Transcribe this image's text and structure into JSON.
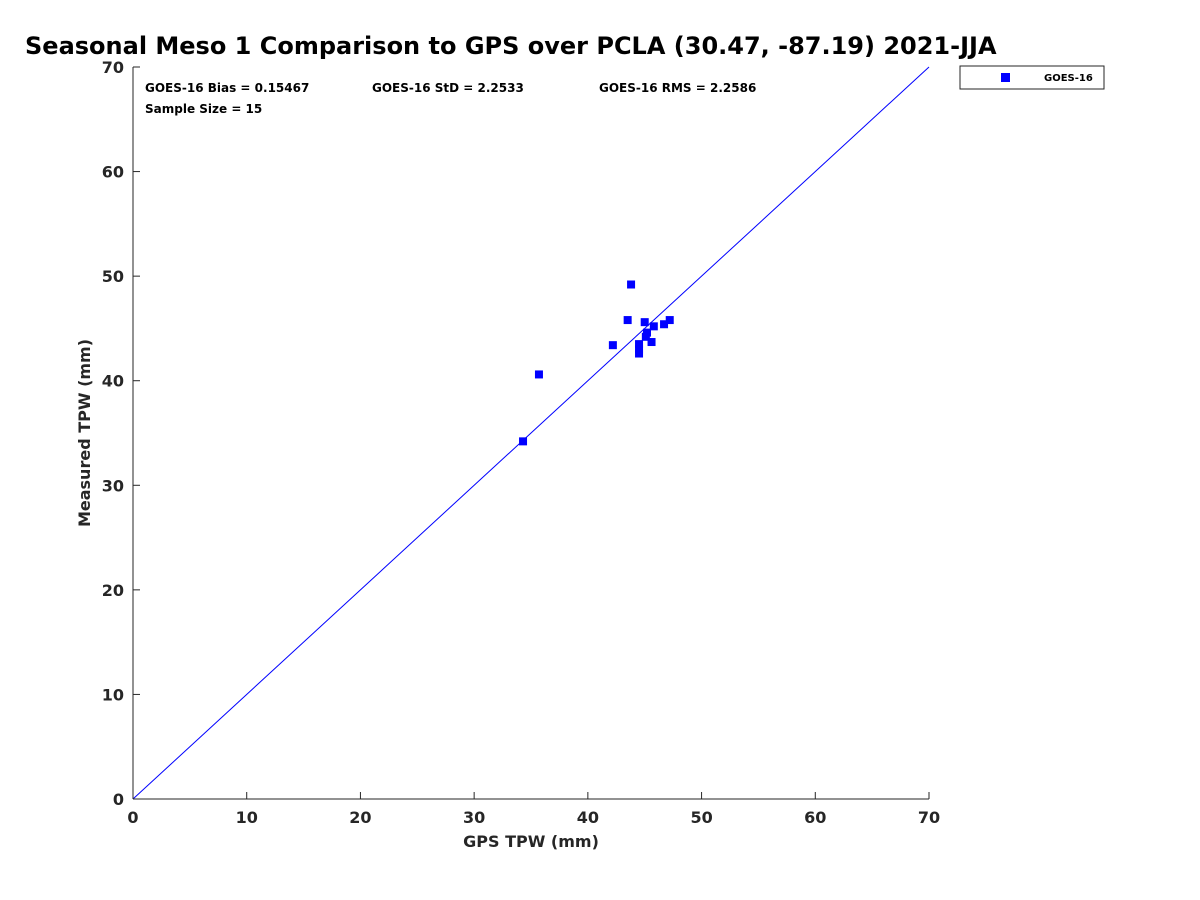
{
  "chart_data": {
    "type": "scatter",
    "title": "Seasonal Meso 1 Comparison to GPS over PCLA (30.47, -87.19) 2021-JJA",
    "xlabel": "GPS TPW (mm)",
    "ylabel": "Measured TPW (mm)",
    "xlim": [
      0,
      70
    ],
    "ylim": [
      0,
      70
    ],
    "xticks": [
      0,
      10,
      20,
      30,
      40,
      50,
      60,
      70
    ],
    "yticks": [
      0,
      10,
      20,
      30,
      40,
      50,
      60,
      70
    ],
    "grid": false,
    "legend_position": "top-right, outside plot",
    "reference_line": {
      "type": "one-to-one",
      "from": [
        0,
        0
      ],
      "to": [
        70,
        70
      ],
      "color": "#0000ff"
    },
    "series": [
      {
        "name": "GOES-16",
        "color": "#0000ff",
        "marker": "square",
        "points": [
          [
            34.3,
            34.2
          ],
          [
            35.7,
            40.6
          ],
          [
            42.2,
            43.4
          ],
          [
            43.5,
            45.8
          ],
          [
            43.8,
            49.2
          ],
          [
            44.5,
            42.6
          ],
          [
            44.5,
            43.0
          ],
          [
            44.5,
            43.5
          ],
          [
            45.0,
            45.6
          ],
          [
            45.1,
            44.2
          ],
          [
            45.2,
            44.6
          ],
          [
            45.6,
            43.7
          ],
          [
            45.8,
            45.2
          ],
          [
            46.7,
            45.4
          ],
          [
            47.2,
            45.8
          ]
        ]
      }
    ],
    "annotations": {
      "bias": "GOES-16 Bias = 0.15467",
      "std": "GOES-16 StD = 2.2533",
      "rms": "GOES-16 RMS = 2.2586",
      "sample_size": "Sample Size = 15"
    }
  }
}
